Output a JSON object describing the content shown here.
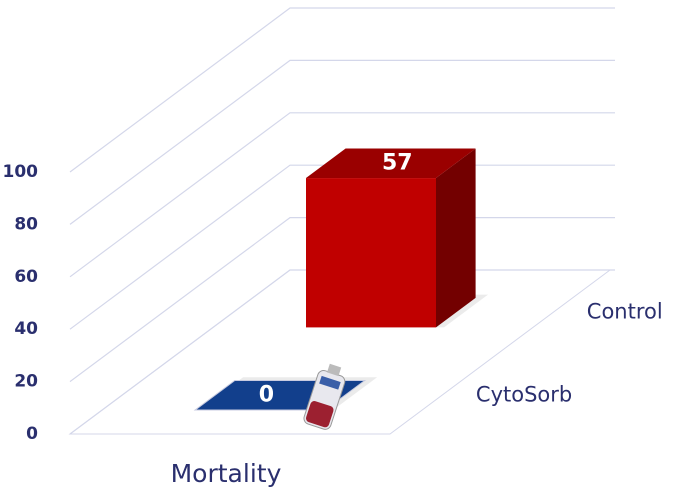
{
  "chart_data": {
    "type": "bar3d",
    "categories": [
      "Mortality"
    ],
    "series": [
      {
        "name": "CytoSorb",
        "color": "#123f8c",
        "values": [
          0
        ]
      },
      {
        "name": "Control",
        "color": "#c00000",
        "values": [
          57
        ]
      }
    ],
    "ylim": [
      0,
      100
    ],
    "yticks": [
      0,
      20,
      40,
      60,
      80,
      100
    ],
    "grid": true
  }
}
